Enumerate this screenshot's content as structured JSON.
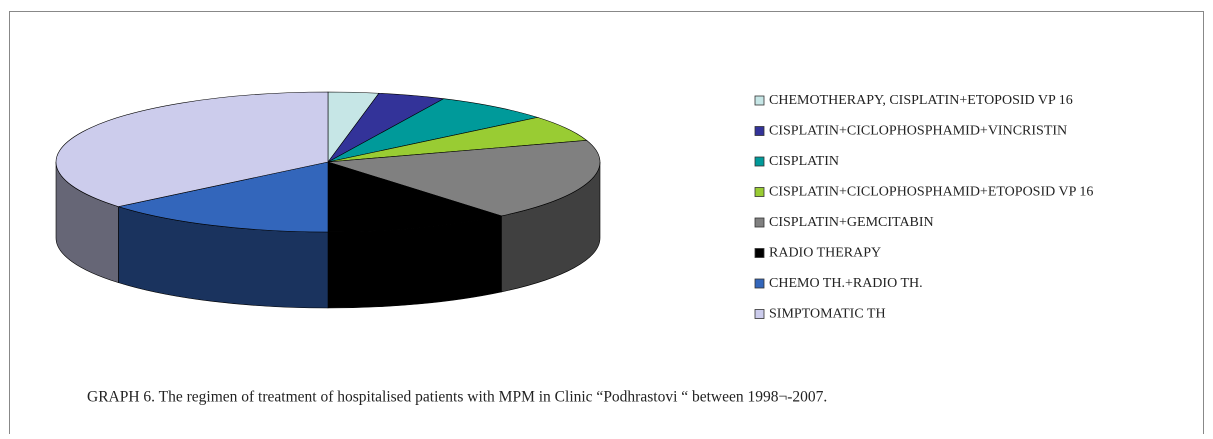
{
  "chart_data": {
    "type": "pie3d",
    "categories": [
      "CHEMOTHERAPY, CISPLATIN+ETOPOSID VP 16",
      "CISPLATIN+CICLOPHOSPHAMID+VINCRISTIN",
      "CISPLATIN",
      "CISPLATIN+CICLOPHOSPHAMID+ETOPOSID VP 16",
      "CISPLATIN+GEMCITABIN",
      "RADIO THERAPY",
      "CHEMO TH.+RADIO TH.",
      "SIMPTOMATIC TH"
    ],
    "values": [
      3,
      4,
      7,
      6,
      19,
      11,
      14,
      36
    ],
    "colors": [
      "#c6e6e6",
      "#333399",
      "#009a9a",
      "#99cc33",
      "#808080",
      "#000000",
      "#3366bb",
      "#ccccec"
    ],
    "legend": "right",
    "caption": "GRAPH 6. The regimen of treatment of hospitalised patients with MPM  in  Clinic “Podhrastovi “ between 1998¬-2007."
  }
}
